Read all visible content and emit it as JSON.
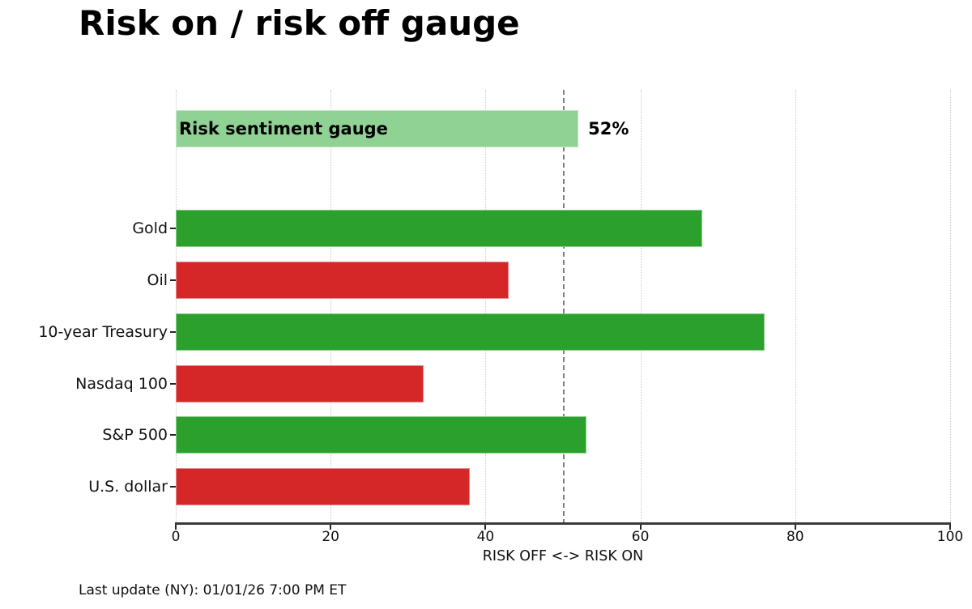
{
  "page": {
    "title": "Risk on / risk off gauge",
    "footer": "Last update (NY): 01/01/26 7:00 PM ET"
  },
  "chart_data": {
    "type": "bar",
    "orientation": "horizontal",
    "title": "Risk on / risk off gauge",
    "xlabel": "RISK OFF <-> RISK ON",
    "xlim": [
      0,
      100
    ],
    "xticks": [
      0,
      20,
      40,
      60,
      80,
      100
    ],
    "grid": "vertical dotted gridlines at each xtick",
    "legend": "none",
    "reference_line": {
      "x": 50,
      "style": "dashed",
      "color": "#7f7f7f"
    },
    "gauge": {
      "label": "Risk sentiment gauge",
      "value": 52,
      "value_label": "52%",
      "color": "#90d294"
    },
    "categories": [
      "Gold",
      "Oil",
      "10-year Treasury",
      "Nasdaq 100",
      "S&P 500",
      "U.S. dollar"
    ],
    "values": [
      68,
      43,
      76,
      32,
      53,
      38
    ],
    "bar_colors": [
      "#2ca02c",
      "#d62728",
      "#2ca02c",
      "#d62728",
      "#2ca02c",
      "#d62728"
    ],
    "colors": {
      "risk_on_green": "#2ca02c",
      "risk_off_red": "#d62728",
      "gauge_light_green": "#90d294",
      "gridline": "#c9c9c9",
      "reference_dash": "#7f7f7f",
      "axis": "#3a3a3a"
    }
  }
}
